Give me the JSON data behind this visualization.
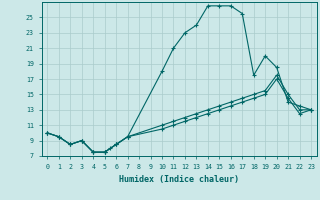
{
  "xlabel": "Humidex (Indice chaleur)",
  "bg_color": "#cce8e8",
  "grid_color": "#aacccc",
  "line_color": "#006666",
  "xlim": [
    -0.5,
    23.5
  ],
  "ylim": [
    7,
    27
  ],
  "yticks": [
    7,
    9,
    11,
    13,
    15,
    17,
    19,
    21,
    23,
    25
  ],
  "xticks": [
    0,
    1,
    2,
    3,
    4,
    5,
    6,
    7,
    8,
    9,
    10,
    11,
    12,
    13,
    14,
    15,
    16,
    17,
    18,
    19,
    20,
    21,
    22,
    23
  ],
  "series1_x": [
    0,
    1,
    2,
    3,
    4,
    5,
    5.5,
    6,
    7,
    10,
    11,
    12,
    13,
    14,
    15,
    16,
    17,
    18,
    19,
    20,
    21,
    22,
    23
  ],
  "series1_y": [
    10,
    9.5,
    8.5,
    9,
    7.5,
    7.5,
    8.0,
    8.5,
    9.5,
    18,
    21,
    23,
    24,
    26.5,
    26.5,
    26.5,
    25.5,
    17.5,
    20,
    18.5,
    14,
    13.5,
    13
  ],
  "series2_x": [
    0,
    1,
    2,
    3,
    4,
    5,
    6,
    7,
    10,
    11,
    12,
    13,
    14,
    15,
    16,
    17,
    18,
    19,
    20,
    21,
    22,
    23
  ],
  "series2_y": [
    10,
    9.5,
    8.5,
    9,
    7.5,
    7.5,
    8.5,
    9.5,
    11.0,
    11.5,
    12.0,
    12.5,
    13.0,
    13.5,
    14.0,
    14.5,
    15.0,
    15.5,
    17.5,
    15.0,
    13.0,
    13.0
  ],
  "series3_x": [
    0,
    1,
    2,
    3,
    4,
    5,
    6,
    7,
    10,
    11,
    12,
    13,
    14,
    15,
    16,
    17,
    18,
    19,
    20,
    21,
    22,
    23
  ],
  "series3_y": [
    10,
    9.5,
    8.5,
    9,
    7.5,
    7.5,
    8.5,
    9.5,
    10.5,
    11.0,
    11.5,
    12.0,
    12.5,
    13.0,
    13.5,
    14.0,
    14.5,
    15.0,
    17.0,
    14.5,
    12.5,
    13.0
  ],
  "xlabel_fontsize": 6.0,
  "tick_fontsize": 4.8
}
